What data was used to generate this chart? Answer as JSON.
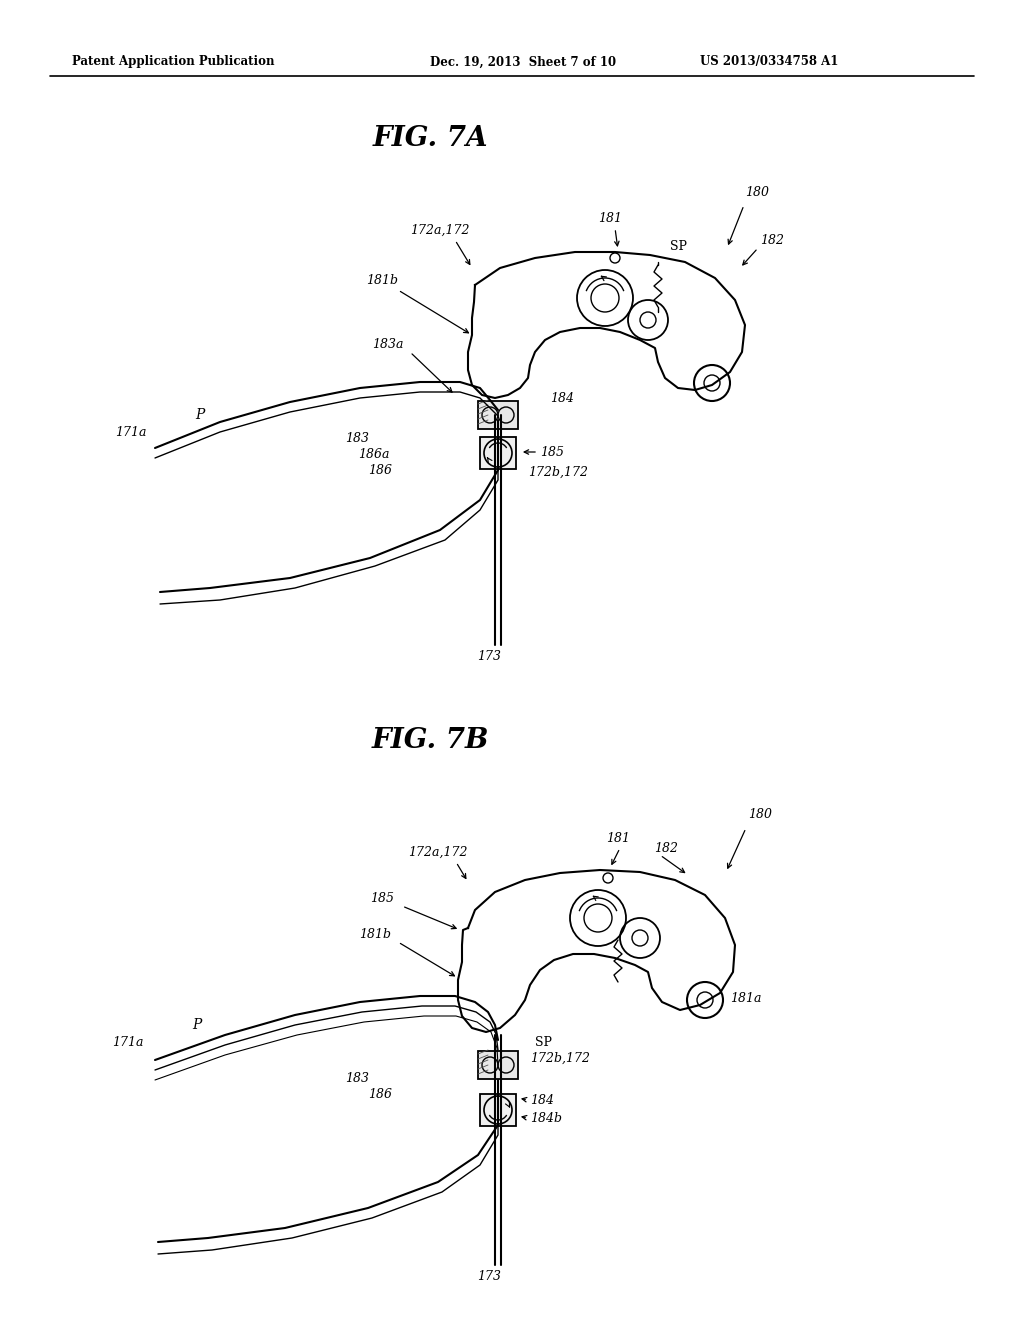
{
  "background_color": "#ffffff",
  "header_left": "Patent Application Publication",
  "header_center": "Dec. 19, 2013  Sheet 7 of 10",
  "header_right": "US 2013/0334758 A1",
  "fig7a_title": "FIG. 7A",
  "fig7b_title": "FIG. 7B",
  "line_color": "#000000",
  "fig_width": 10.24,
  "fig_height": 13.2
}
